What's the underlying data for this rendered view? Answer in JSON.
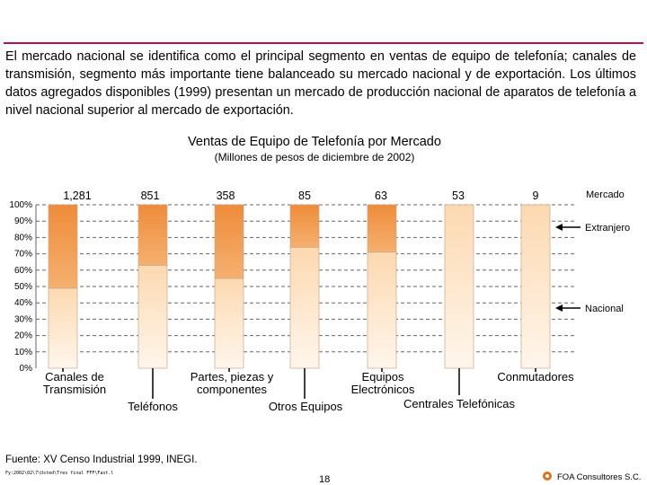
{
  "intro_text": "El mercado nacional se identifica como el principal segmento en ventas de equipo de telefonía; canales de transmisión, segmento más importante tiene balanceado su mercado nacional y de exportación. Los últimos datos agregados disponibles (1999) presentan un mercado de producción nacional de aparatos de telefonía a nivel nacional superior al mercado de exportación.",
  "chart_data": {
    "type": "bar",
    "stacked": true,
    "normalized": true,
    "title": "Ventas de Equipo de Telefonía por Mercado",
    "subtitle": "(Millones de pesos de diciembre de 2002)",
    "categories": [
      "Canales de Transmisión",
      "Teléfonos",
      "Partes, piezas y componentes",
      "Otros Equipos",
      "Equipos Electrónicos",
      "Centrales Telefónicas",
      "Conmutadores"
    ],
    "totals": [
      "1,281",
      "851",
      "358",
      "85",
      "63",
      "53",
      "9"
    ],
    "series": [
      {
        "name": "Nacional",
        "values": [
          49,
          63,
          55,
          74,
          71,
          100,
          100
        ]
      },
      {
        "name": "Extranjero",
        "values": [
          51,
          37,
          45,
          26,
          29,
          0,
          0
        ]
      }
    ],
    "yticks": [
      "0%",
      "10%",
      "20%",
      "30%",
      "40%",
      "50%",
      "60%",
      "70%",
      "80%",
      "90%",
      "100%"
    ],
    "ylim": [
      0,
      100
    ],
    "legend_title": "Mercado",
    "grid": true,
    "colors": {
      "nacional_top": "#fcd9b0",
      "nacional_bottom": "#fff6ec",
      "extranjero_top": "#ee8c3a",
      "extranjero_bottom": "#f5b06f",
      "accent": "#b3124a"
    }
  },
  "source": "Fuente: XV Censo Industrial 1999, INEGI.",
  "file_path": "Fy:2002\\02\\7\\Usted\\Tres final FFF\\Fast.l",
  "page_number": "18",
  "company": "FOA Consultores S.C."
}
